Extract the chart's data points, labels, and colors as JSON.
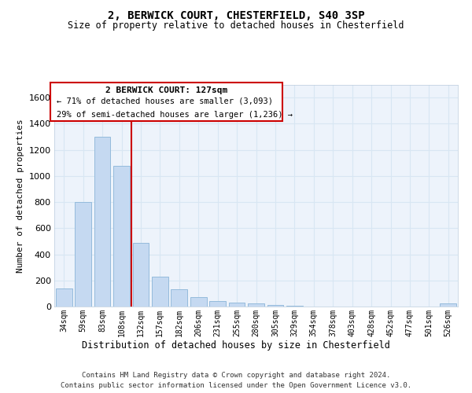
{
  "title": "2, BERWICK COURT, CHESTERFIELD, S40 3SP",
  "subtitle": "Size of property relative to detached houses in Chesterfield",
  "xlabel": "Distribution of detached houses by size in Chesterfield",
  "ylabel": "Number of detached properties",
  "footer_line1": "Contains HM Land Registry data © Crown copyright and database right 2024.",
  "footer_line2": "Contains public sector information licensed under the Open Government Licence v3.0.",
  "bar_color": "#c5d9f1",
  "bar_edge_color": "#8ab4d8",
  "annotation_title": "2 BERWICK COURT: 127sqm",
  "annotation_line1": "← 71% of detached houses are smaller (3,093)",
  "annotation_line2": "29% of semi-detached houses are larger (1,236) →",
  "vline_color": "#cc0000",
  "vline_xidx": 3.5,
  "categories": [
    "34sqm",
    "59sqm",
    "83sqm",
    "108sqm",
    "132sqm",
    "157sqm",
    "182sqm",
    "206sqm",
    "231sqm",
    "255sqm",
    "280sqm",
    "305sqm",
    "329sqm",
    "354sqm",
    "378sqm",
    "403sqm",
    "428sqm",
    "452sqm",
    "477sqm",
    "501sqm",
    "526sqm"
  ],
  "bar_heights": [
    140,
    800,
    1300,
    1080,
    490,
    230,
    135,
    70,
    42,
    28,
    22,
    12,
    5,
    3,
    1,
    0,
    0,
    0,
    0,
    0,
    22
  ],
  "ylim": [
    0,
    1700
  ],
  "yticks": [
    0,
    200,
    400,
    600,
    800,
    1000,
    1200,
    1400,
    1600
  ],
  "grid_color": "#d8e6f3",
  "plot_bg_color": "#edf3fb"
}
